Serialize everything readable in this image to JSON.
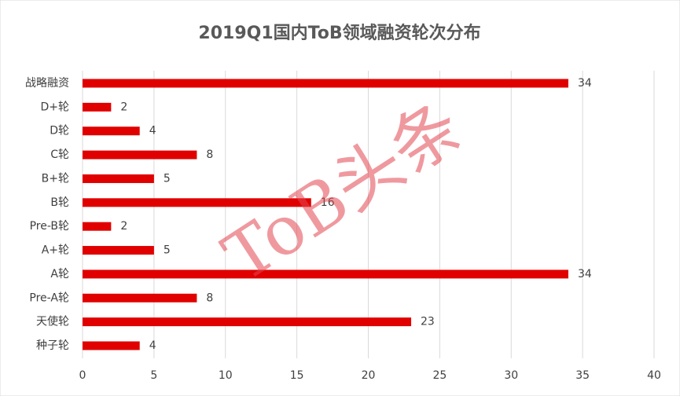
{
  "chart_data": {
    "type": "hbar",
    "title": "2019Q1国内ToB领域融资轮次分布",
    "categories": [
      "战略融资",
      "D+轮",
      "D轮",
      "C轮",
      "B+轮",
      "B轮",
      "Pre-B轮",
      "A+轮",
      "A轮",
      "Pre-A轮",
      "天使轮",
      "种子轮"
    ],
    "values": [
      34,
      2,
      4,
      8,
      5,
      16,
      2,
      5,
      34,
      8,
      23,
      4
    ],
    "color": "#e00000",
    "xlim": [
      0,
      40
    ],
    "xticks": [
      0,
      5,
      10,
      15,
      20,
      25,
      30,
      35,
      40
    ],
    "grid": true,
    "watermark": "ToB头条"
  }
}
